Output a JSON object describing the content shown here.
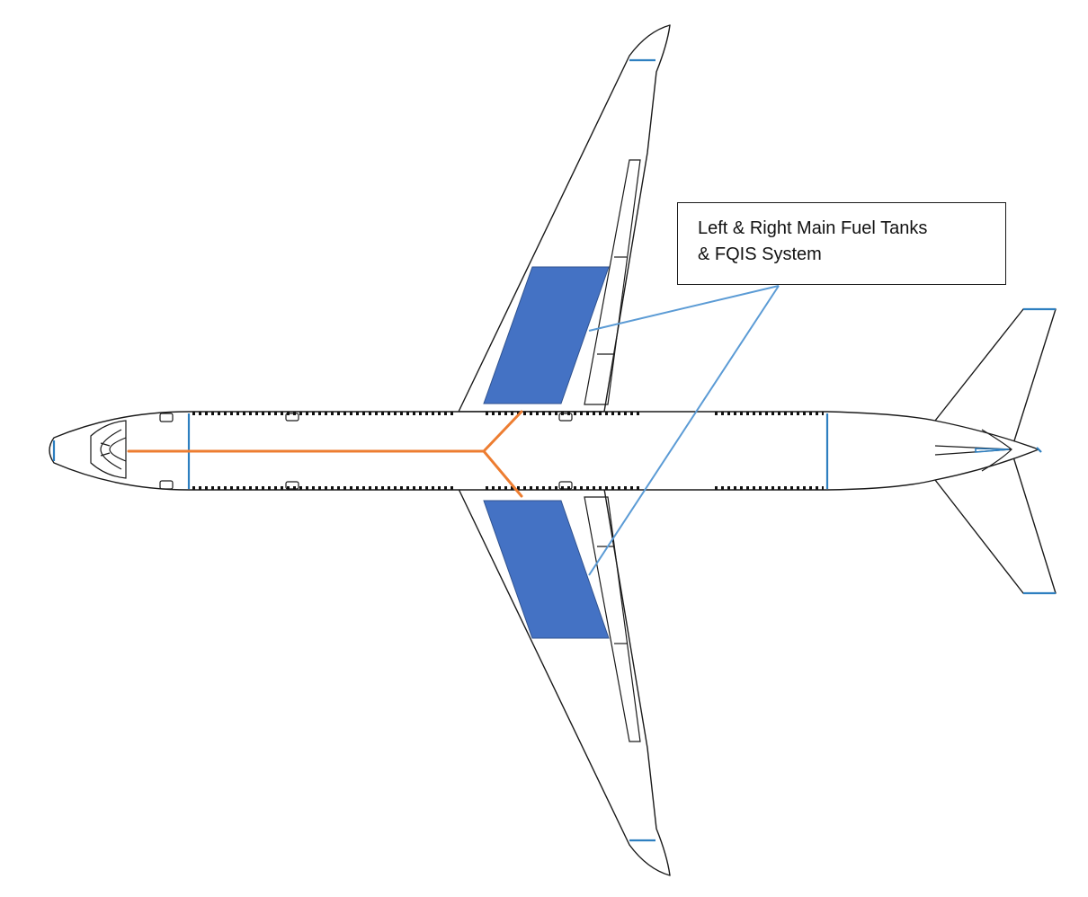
{
  "callout": {
    "line1": "Left & Right Main Fuel Tanks",
    "line2": "& FQIS System"
  },
  "colors": {
    "fuel_tank": "#4472c4",
    "fuel_line": "#ed7d31",
    "leader_line": "#5b9bd5",
    "marker": "#2e7fc0"
  }
}
